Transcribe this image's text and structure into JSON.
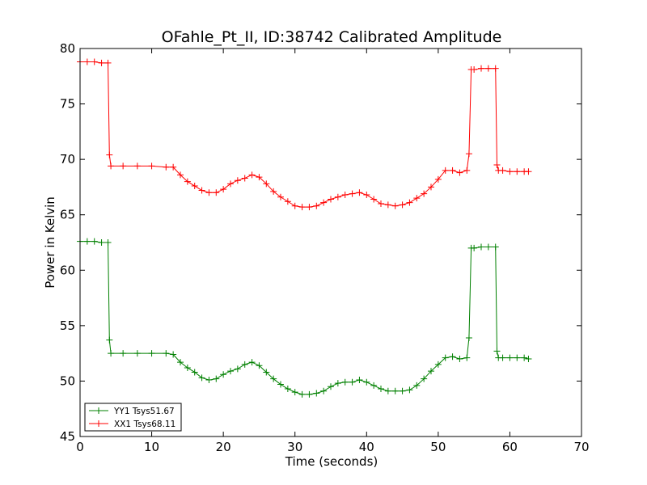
{
  "chart_data": {
    "type": "line",
    "title": "OFahle_Pt_II, ID:38742 Calibrated Amplitude",
    "xlabel": "Time (seconds)",
    "ylabel": "Power in Kelvin",
    "xlim": [
      0,
      70
    ],
    "ylim": [
      45,
      80
    ],
    "xticks": [
      "0",
      "10",
      "20",
      "30",
      "40",
      "50",
      "60",
      "70"
    ],
    "yticks": [
      "45",
      "50",
      "55",
      "60",
      "65",
      "70",
      "75",
      "80"
    ],
    "grid": false,
    "legend_position": "lower-left",
    "marker": "plus",
    "series": [
      {
        "name": "YY1 Tsys51.67",
        "color": "#008000",
        "x": [
          0,
          1,
          2,
          3,
          3.9,
          4.1,
          4.3,
          6,
          8,
          10,
          12,
          13,
          14,
          15,
          16,
          17,
          18,
          19,
          20,
          21,
          22,
          23,
          24,
          25,
          26,
          27,
          28,
          29,
          30,
          31,
          32,
          33,
          34,
          35,
          36,
          37,
          38,
          39,
          40,
          41,
          42,
          43,
          44,
          45,
          46,
          47,
          48,
          49,
          50,
          51,
          52,
          53,
          54,
          54.3,
          54.6,
          55,
          56,
          57,
          58,
          58.2,
          58.4,
          59,
          60,
          61,
          62,
          62.6
        ],
        "y": [
          62.6,
          62.6,
          62.6,
          62.5,
          62.5,
          53.7,
          52.5,
          52.5,
          52.5,
          52.5,
          52.5,
          52.4,
          51.7,
          51.2,
          50.8,
          50.3,
          50.1,
          50.2,
          50.6,
          50.9,
          51.1,
          51.5,
          51.7,
          51.4,
          50.8,
          50.2,
          49.7,
          49.3,
          49.0,
          48.8,
          48.8,
          48.9,
          49.1,
          49.5,
          49.8,
          49.9,
          49.9,
          50.1,
          49.9,
          49.6,
          49.3,
          49.1,
          49.1,
          49.1,
          49.2,
          49.6,
          50.2,
          50.9,
          51.5,
          52.1,
          52.2,
          52.0,
          52.1,
          53.9,
          62.0,
          62.0,
          62.1,
          62.1,
          62.1,
          52.7,
          52.1,
          52.1,
          52.1,
          52.1,
          52.1,
          52.0
        ]
      },
      {
        "name": "XX1 Tsys68.11",
        "color": "#ff0000",
        "x": [
          0,
          1,
          2,
          3,
          3.9,
          4.1,
          4.3,
          6,
          8,
          10,
          12,
          13,
          14,
          15,
          16,
          17,
          18,
          19,
          20,
          21,
          22,
          23,
          24,
          25,
          26,
          27,
          28,
          29,
          30,
          31,
          32,
          33,
          34,
          35,
          36,
          37,
          38,
          39,
          40,
          41,
          42,
          43,
          44,
          45,
          46,
          47,
          48,
          49,
          50,
          51,
          52,
          53,
          54,
          54.3,
          54.6,
          55,
          56,
          57,
          58,
          58.2,
          58.4,
          59,
          60,
          61,
          62,
          62.6
        ],
        "y": [
          78.8,
          78.8,
          78.8,
          78.7,
          78.7,
          70.4,
          69.4,
          69.4,
          69.4,
          69.4,
          69.3,
          69.3,
          68.6,
          68.0,
          67.6,
          67.2,
          67.0,
          67.0,
          67.3,
          67.8,
          68.1,
          68.3,
          68.6,
          68.4,
          67.8,
          67.1,
          66.6,
          66.2,
          65.8,
          65.7,
          65.7,
          65.8,
          66.1,
          66.4,
          66.6,
          66.8,
          66.9,
          67.0,
          66.8,
          66.4,
          66.0,
          65.9,
          65.8,
          65.9,
          66.1,
          66.5,
          66.9,
          67.5,
          68.2,
          69.0,
          69.0,
          68.8,
          69.0,
          70.5,
          78.1,
          78.1,
          78.2,
          78.2,
          78.2,
          69.5,
          69.0,
          69.0,
          68.9,
          68.9,
          68.9,
          68.9
        ]
      }
    ]
  }
}
